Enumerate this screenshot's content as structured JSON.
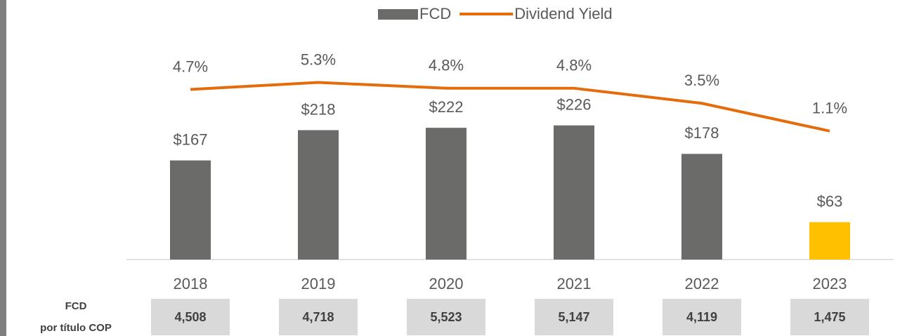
{
  "chart_data": {
    "type": "combo",
    "categories": [
      "2018",
      "2019",
      "2020",
      "2021",
      "2022",
      "2023"
    ],
    "series": [
      {
        "name": "FCD",
        "type": "bar",
        "color": "#6b6b69",
        "colors": [
          "#6b6b69",
          "#6b6b69",
          "#6b6b69",
          "#6b6b69",
          "#6b6b69",
          "#ffc000"
        ],
        "values": [
          167,
          218,
          222,
          226,
          178,
          63
        ],
        "value_labels": [
          "$167",
          "$218",
          "$222",
          "$226",
          "$178",
          "$63"
        ]
      },
      {
        "name": "Dividend Yield",
        "type": "line",
        "axis": "y2",
        "color": "#e46c0a",
        "values": [
          4.7,
          5.3,
          4.8,
          4.8,
          3.5,
          1.1
        ],
        "value_labels": [
          "4.7%",
          "5.3%",
          "4.8%",
          "4.8%",
          "3.5%",
          "1.1%"
        ]
      }
    ],
    "ylim": [
      0,
      390
    ],
    "y2lim": [
      -10,
      10
    ],
    "legend": "top",
    "table": {
      "label": [
        "FCD",
        "por título COP"
      ],
      "values": [
        "4,508",
        "4,718",
        "5,523",
        "5,147",
        "4,119",
        "1,475"
      ]
    }
  }
}
